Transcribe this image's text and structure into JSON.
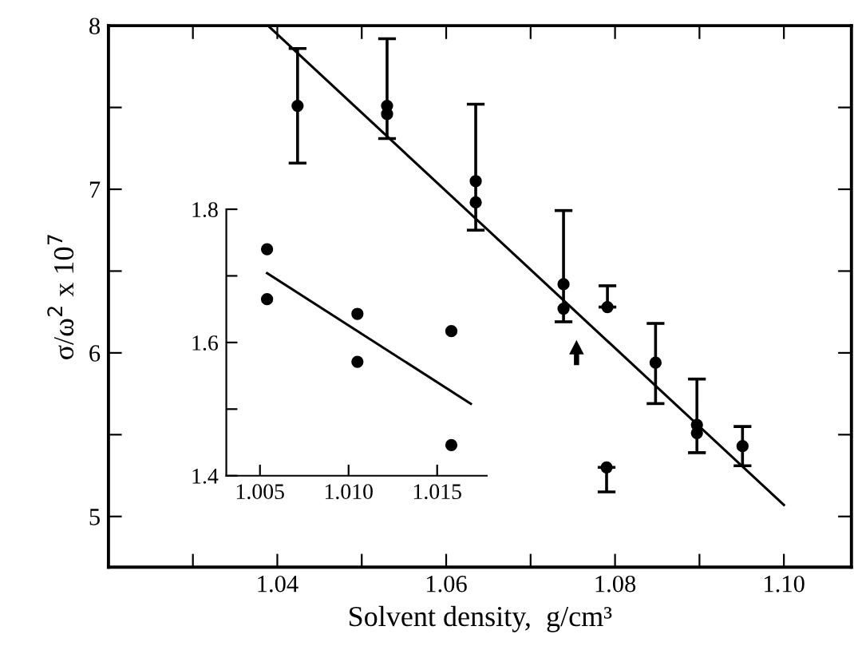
{
  "chart_data": [
    {
      "type": "scatter",
      "xlabel": "Solvent density,  g/cm³",
      "ylabel": "σ/ω$^{2}$ x 10$^{7}$",
      "marker": "circle",
      "grid": false,
      "legend": false,
      "xlim": [
        1.02,
        1.108
      ],
      "ylim": [
        4.69,
        8.0
      ],
      "xticks": [
        {
          "value": 1.03,
          "label": null
        },
        1.04,
        {
          "value": 1.05,
          "label": null
        },
        1.06,
        {
          "value": 1.07,
          "label": null
        },
        1.08,
        {
          "value": 1.09,
          "label": null
        },
        {
          "value": 1.1,
          "label": "1.10"
        }
      ],
      "yticks": [
        5,
        {
          "value": 5.5,
          "label": null
        },
        6,
        {
          "value": 6.5,
          "label": null
        },
        7,
        {
          "value": 7.5,
          "label": null
        },
        8
      ],
      "series": [
        {
          "color": "#000000",
          "x": [
            1.0424,
            1.053,
            1.053,
            1.0635,
            1.0635,
            1.0739,
            1.0739,
            1.0791,
            1.079,
            1.0848,
            1.0897,
            1.0897,
            1.0951
          ],
          "values": [
            7.51,
            7.51,
            7.46,
            7.05,
            6.92,
            6.42,
            6.27,
            6.28,
            5.3,
            5.94,
            5.56,
            5.51,
            5.43
          ],
          "errors": [
            [
              7.16,
              7.86
            ],
            null,
            [
              7.31,
              7.92
            ],
            null,
            [
              6.75,
              7.52
            ],
            null,
            [
              6.19,
              6.87
            ],
            [
              6.28,
              6.41
            ],
            [
              5.15,
              5.3
            ],
            [
              5.69,
              6.18
            ],
            null,
            [
              5.39,
              5.84
            ],
            [
              5.31,
              5.55
            ]
          ]
        },
        {
          "type": "line",
          "color": "#000000",
          "marker": "none",
          "line_style": "solid",
          "x": [
            1.0389,
            1.1
          ],
          "values": [
            8.0,
            5.07
          ]
        }
      ]
    },
    {
      "type": "scatter",
      "marker": "circle",
      "grid": false,
      "legend": false,
      "xlim": [
        1.0031,
        1.0178
      ],
      "ylim": [
        1.4,
        1.8
      ],
      "xticks": [
        1.005,
        {
          "value": 1.01,
          "label": "1.010"
        },
        1.015
      ],
      "yticks": [
        1.4,
        {
          "value": 1.5,
          "label": null
        },
        1.6,
        {
          "value": 1.7,
          "label": null
        },
        1.8
      ],
      "series": [
        {
          "color": "#000000",
          "x": [
            1.0054,
            1.0054,
            1.0105,
            1.0105,
            1.0158,
            1.0158
          ],
          "values": [
            1.74,
            1.665,
            1.643,
            1.571,
            1.617,
            1.446
          ]
        },
        {
          "type": "line",
          "color": "#000000",
          "marker": "none",
          "line_style": "solid",
          "x": [
            1.0054,
            1.0169
          ],
          "values": [
            1.704,
            1.508
          ]
        }
      ]
    }
  ]
}
